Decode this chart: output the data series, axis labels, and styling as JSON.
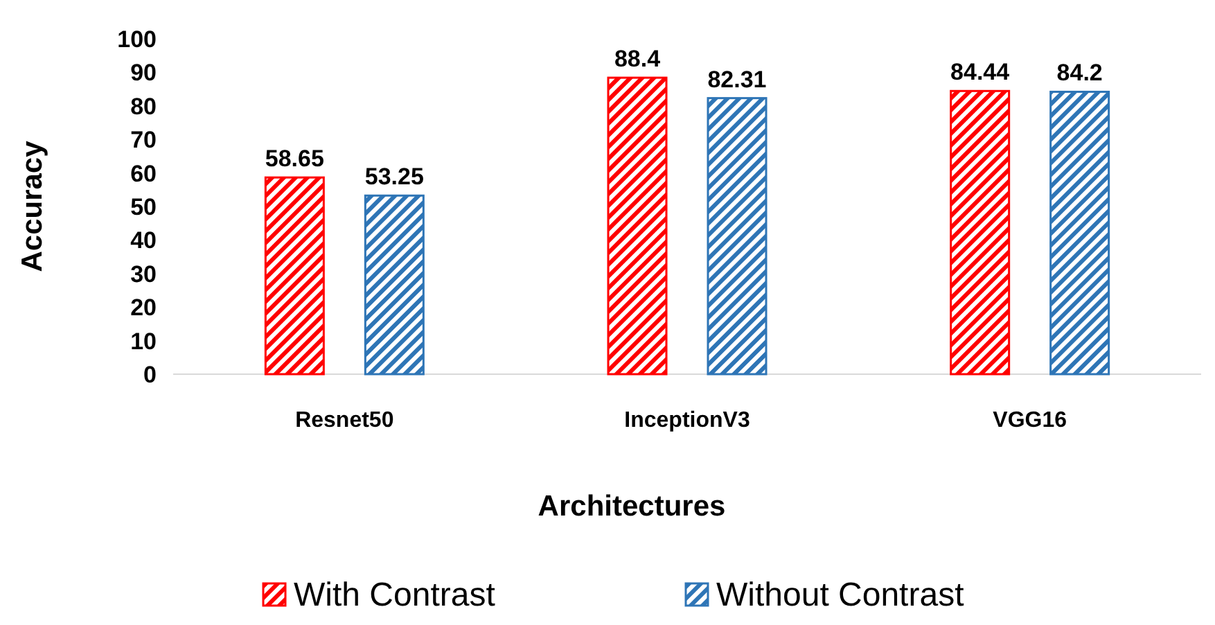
{
  "chart_data": {
    "type": "bar",
    "xlabel": "Architectures",
    "ylabel": "Accuracy",
    "categories": [
      "Resnet50",
      "InceptionV3",
      "VGG16"
    ],
    "series": [
      {
        "name": "With Contrast",
        "color": "#ff0000",
        "values": [
          58.65,
          88.4,
          84.44
        ]
      },
      {
        "name": "Without Contrast",
        "color": "#2e75b6",
        "values": [
          53.25,
          82.31,
          84.2
        ]
      }
    ],
    "ylim": [
      0,
      100
    ],
    "yticks": [
      0,
      10,
      20,
      30,
      40,
      50,
      60,
      70,
      80,
      90,
      100
    ],
    "grid": false,
    "legend": "bottom",
    "data_labels": true
  }
}
